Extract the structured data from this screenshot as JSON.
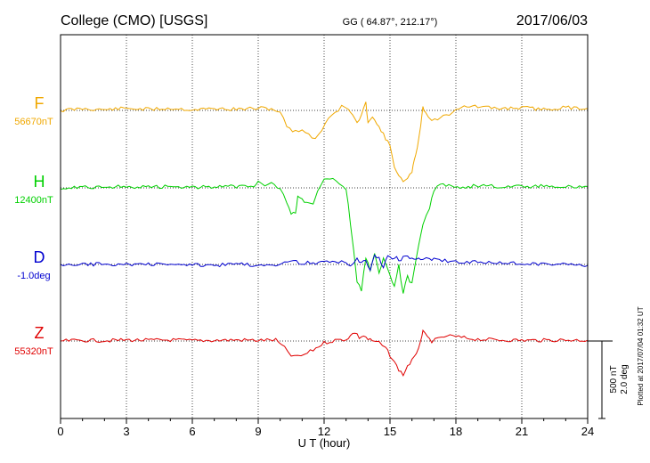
{
  "header": {
    "station": "College (CMO)  [USGS]",
    "coords": "GG ( 64.87°, 212.17°)",
    "date": "2017/06/03"
  },
  "footer": {
    "plotted": "Plotted at 2017/07/04 01:32 UT"
  },
  "scale": {
    "nT": "500 nT",
    "deg": "2.0 deg"
  },
  "chart_data": {
    "type": "line",
    "xlabel": "U T (hour)",
    "xlim": [
      0,
      24
    ],
    "xticks": [
      0,
      3,
      6,
      9,
      12,
      15,
      18,
      21,
      24
    ],
    "grid": true,
    "series": [
      {
        "name": "F",
        "baseline_label": "56670nT",
        "color": "#f0a800",
        "points": [
          [
            0,
            0
          ],
          [
            1,
            -5
          ],
          [
            2,
            -2
          ],
          [
            3,
            -6
          ],
          [
            4,
            -3
          ],
          [
            5,
            -6
          ],
          [
            6,
            -2
          ],
          [
            7,
            -5
          ],
          [
            8,
            -3
          ],
          [
            9,
            -6
          ],
          [
            9.6,
            -5
          ],
          [
            10.0,
            5
          ],
          [
            10.3,
            45
          ],
          [
            10.7,
            60
          ],
          [
            11.0,
            52
          ],
          [
            11.3,
            70
          ],
          [
            11.6,
            78
          ],
          [
            11.9,
            55
          ],
          [
            12.2,
            20
          ],
          [
            12.5,
            5
          ],
          [
            12.8,
            -10
          ],
          [
            13.1,
            -5
          ],
          [
            13.3,
            15
          ],
          [
            13.5,
            35
          ],
          [
            13.7,
            15
          ],
          [
            13.9,
            -20
          ],
          [
            14.0,
            30
          ],
          [
            14.2,
            15
          ],
          [
            14.4,
            40
          ],
          [
            14.6,
            55
          ],
          [
            14.8,
            80
          ],
          [
            15.0,
            100
          ],
          [
            15.2,
            155
          ],
          [
            15.4,
            185
          ],
          [
            15.6,
            200
          ],
          [
            15.8,
            195
          ],
          [
            16.0,
            170
          ],
          [
            16.1,
            145
          ],
          [
            16.25,
            100
          ],
          [
            16.4,
            40
          ],
          [
            16.5,
            -10
          ],
          [
            16.6,
            5
          ],
          [
            16.9,
            30
          ],
          [
            17.3,
            20
          ],
          [
            17.7,
            10
          ],
          [
            18.0,
            -5
          ],
          [
            18.5,
            -12
          ],
          [
            19,
            -10
          ],
          [
            20,
            -5
          ],
          [
            21,
            -8
          ],
          [
            22,
            -3
          ],
          [
            23,
            -8
          ],
          [
            24,
            -6
          ]
        ]
      },
      {
        "name": "H",
        "baseline_label": "12400nT",
        "color": "#00d000",
        "points": [
          [
            0,
            0
          ],
          [
            1,
            -3
          ],
          [
            2,
            -2
          ],
          [
            3,
            -4
          ],
          [
            4,
            -2
          ],
          [
            5,
            -4
          ],
          [
            6,
            -2
          ],
          [
            7,
            -3
          ],
          [
            8,
            -4
          ],
          [
            8.8,
            -5
          ],
          [
            9.0,
            -20
          ],
          [
            9.3,
            -10
          ],
          [
            9.6,
            -18
          ],
          [
            10.0,
            5
          ],
          [
            10.3,
            40
          ],
          [
            10.5,
            70
          ],
          [
            10.7,
            75
          ],
          [
            10.8,
            25
          ],
          [
            11.0,
            35
          ],
          [
            11.2,
            40
          ],
          [
            11.5,
            50
          ],
          [
            11.7,
            10
          ],
          [
            12.0,
            -20
          ],
          [
            12.4,
            -22
          ],
          [
            12.7,
            -15
          ],
          [
            13.0,
            0
          ],
          [
            13.2,
            100
          ],
          [
            13.5,
            260
          ],
          [
            13.7,
            290
          ],
          [
            13.9,
            195
          ],
          [
            14.1,
            230
          ],
          [
            14.3,
            180
          ],
          [
            14.5,
            240
          ],
          [
            14.7,
            195
          ],
          [
            15.0,
            245
          ],
          [
            15.2,
            280
          ],
          [
            15.4,
            220
          ],
          [
            15.6,
            295
          ],
          [
            15.8,
            250
          ],
          [
            16.0,
            270
          ],
          [
            16.3,
            160
          ],
          [
            16.5,
            100
          ],
          [
            16.8,
            60
          ],
          [
            17.0,
            5
          ],
          [
            17.3,
            -10
          ],
          [
            17.8,
            -8
          ],
          [
            18.2,
            0
          ],
          [
            18.8,
            -5
          ],
          [
            19.5,
            -8
          ],
          [
            20,
            -2
          ],
          [
            21,
            -3
          ],
          [
            22,
            -5
          ],
          [
            23,
            -2
          ],
          [
            24,
            -4
          ]
        ]
      },
      {
        "name": "D",
        "baseline_label": "-1.0deg",
        "color": "#0000d0",
        "points": [
          [
            0,
            3
          ],
          [
            1,
            1
          ],
          [
            2,
            -2
          ],
          [
            3,
            1
          ],
          [
            4,
            -1
          ],
          [
            5,
            2
          ],
          [
            6,
            0
          ],
          [
            7,
            2
          ],
          [
            8,
            0
          ],
          [
            9,
            1
          ],
          [
            9.8,
            0
          ],
          [
            10.2,
            -6
          ],
          [
            10.6,
            -8
          ],
          [
            11.0,
            -4
          ],
          [
            11.5,
            -5
          ],
          [
            12.0,
            -6
          ],
          [
            12.5,
            -5
          ],
          [
            12.8,
            -7
          ],
          [
            13.0,
            -3
          ],
          [
            13.2,
            2
          ],
          [
            13.5,
            -15
          ],
          [
            13.7,
            -5
          ],
          [
            13.9,
            -8
          ],
          [
            14.1,
            15
          ],
          [
            14.3,
            -22
          ],
          [
            14.5,
            -15
          ],
          [
            14.7,
            5
          ],
          [
            14.9,
            -25
          ],
          [
            15.1,
            -15
          ],
          [
            15.3,
            -20
          ],
          [
            15.5,
            -8
          ],
          [
            15.7,
            -28
          ],
          [
            15.9,
            -12
          ],
          [
            16.1,
            -15
          ],
          [
            16.3,
            -20
          ],
          [
            16.5,
            -15
          ],
          [
            16.8,
            -18
          ],
          [
            17.0,
            -14
          ],
          [
            17.5,
            -10
          ],
          [
            18.0,
            -9
          ],
          [
            18.5,
            -7
          ],
          [
            19.0,
            -7
          ],
          [
            20,
            -4
          ],
          [
            21,
            -3
          ],
          [
            22,
            -2
          ],
          [
            23,
            0
          ],
          [
            24,
            3
          ]
        ]
      },
      {
        "name": "Z",
        "baseline_label": "55320nT",
        "color": "#e00000",
        "points": [
          [
            0,
            0
          ],
          [
            1,
            -2
          ],
          [
            2,
            -1
          ],
          [
            3,
            -3
          ],
          [
            4,
            -2
          ],
          [
            5,
            -3
          ],
          [
            6,
            -1
          ],
          [
            7,
            -2
          ],
          [
            8,
            -3
          ],
          [
            9,
            -2
          ],
          [
            9.8,
            -3
          ],
          [
            10.2,
            20
          ],
          [
            10.5,
            40
          ],
          [
            10.8,
            45
          ],
          [
            11.1,
            38
          ],
          [
            11.5,
            25
          ],
          [
            12,
            5
          ],
          [
            12.5,
            -2
          ],
          [
            13.0,
            -5
          ],
          [
            13.2,
            -15
          ],
          [
            13.4,
            -25
          ],
          [
            13.6,
            -10
          ],
          [
            13.8,
            -15
          ],
          [
            14.0,
            -5
          ],
          [
            14.2,
            0
          ],
          [
            14.5,
            5
          ],
          [
            14.8,
            20
          ],
          [
            15.0,
            40
          ],
          [
            15.2,
            60
          ],
          [
            15.4,
            80
          ],
          [
            15.6,
            95
          ],
          [
            15.8,
            70
          ],
          [
            16.0,
            55
          ],
          [
            16.2,
            40
          ],
          [
            16.4,
            -5
          ],
          [
            16.5,
            -25
          ],
          [
            16.7,
            -10
          ],
          [
            16.9,
            0
          ],
          [
            17.2,
            -5
          ],
          [
            17.6,
            -15
          ],
          [
            18.0,
            -12
          ],
          [
            18.5,
            -8
          ],
          [
            19,
            -5
          ],
          [
            20,
            -3
          ],
          [
            21,
            -2
          ],
          [
            22,
            -2
          ],
          [
            23,
            -3
          ],
          [
            24,
            -2
          ]
        ]
      }
    ]
  }
}
